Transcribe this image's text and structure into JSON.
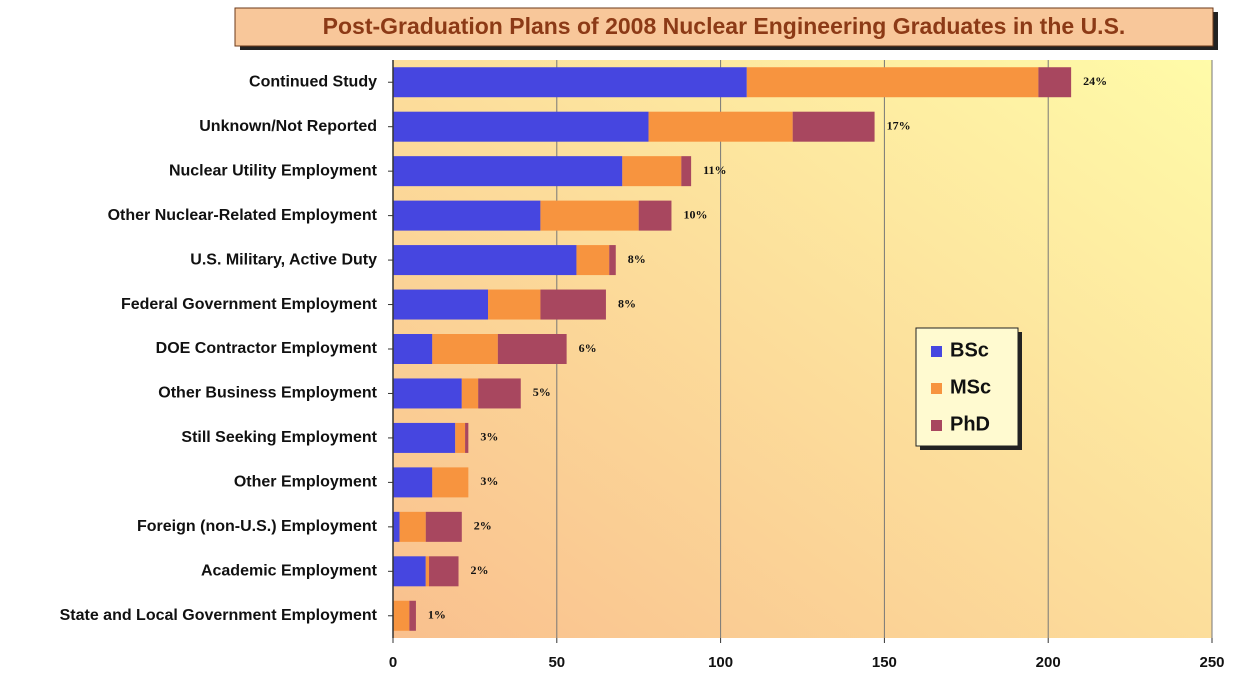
{
  "chart_data": {
    "type": "stacked_barh",
    "title": "Post-Graduation Plans of 2008 Nuclear Engineering Graduates in the U.S.",
    "categories": [
      "Continued Study",
      "Unknown/Not Reported",
      "Nuclear Utility Employment",
      "Other Nuclear-Related Employment",
      "U.S. Military, Active Duty",
      "Federal Government Employment",
      "DOE Contractor Employment",
      "Other Business Employment",
      "Still Seeking Employment",
      "Other Employment",
      "Foreign (non-U.S.) Employment",
      "Academic Employment",
      "State and Local Government Employment"
    ],
    "series": [
      {
        "name": "BSc",
        "color": "#4646e0",
        "values": [
          108,
          78,
          70,
          45,
          56,
          29,
          12,
          21,
          19,
          12,
          2,
          10,
          0
        ]
      },
      {
        "name": "MSc",
        "color": "#f7943f",
        "values": [
          89,
          44,
          18,
          30,
          10,
          16,
          20,
          5,
          3,
          11,
          8,
          1,
          5
        ]
      },
      {
        "name": "PhD",
        "color": "#a8475f",
        "values": [
          10,
          25,
          3,
          10,
          2,
          20,
          21,
          13,
          1,
          0,
          11,
          9,
          2
        ]
      }
    ],
    "bar_labels": [
      "24%",
      "17%",
      "11%",
      "10%",
      "8%",
      "8%",
      "6%",
      "5%",
      "3%",
      "3%",
      "2%",
      "2%",
      "1%"
    ],
    "xlim": [
      0,
      250
    ],
    "xticks": [
      0,
      50,
      100,
      150,
      200,
      250
    ],
    "grid": true,
    "legend": "right"
  }
}
